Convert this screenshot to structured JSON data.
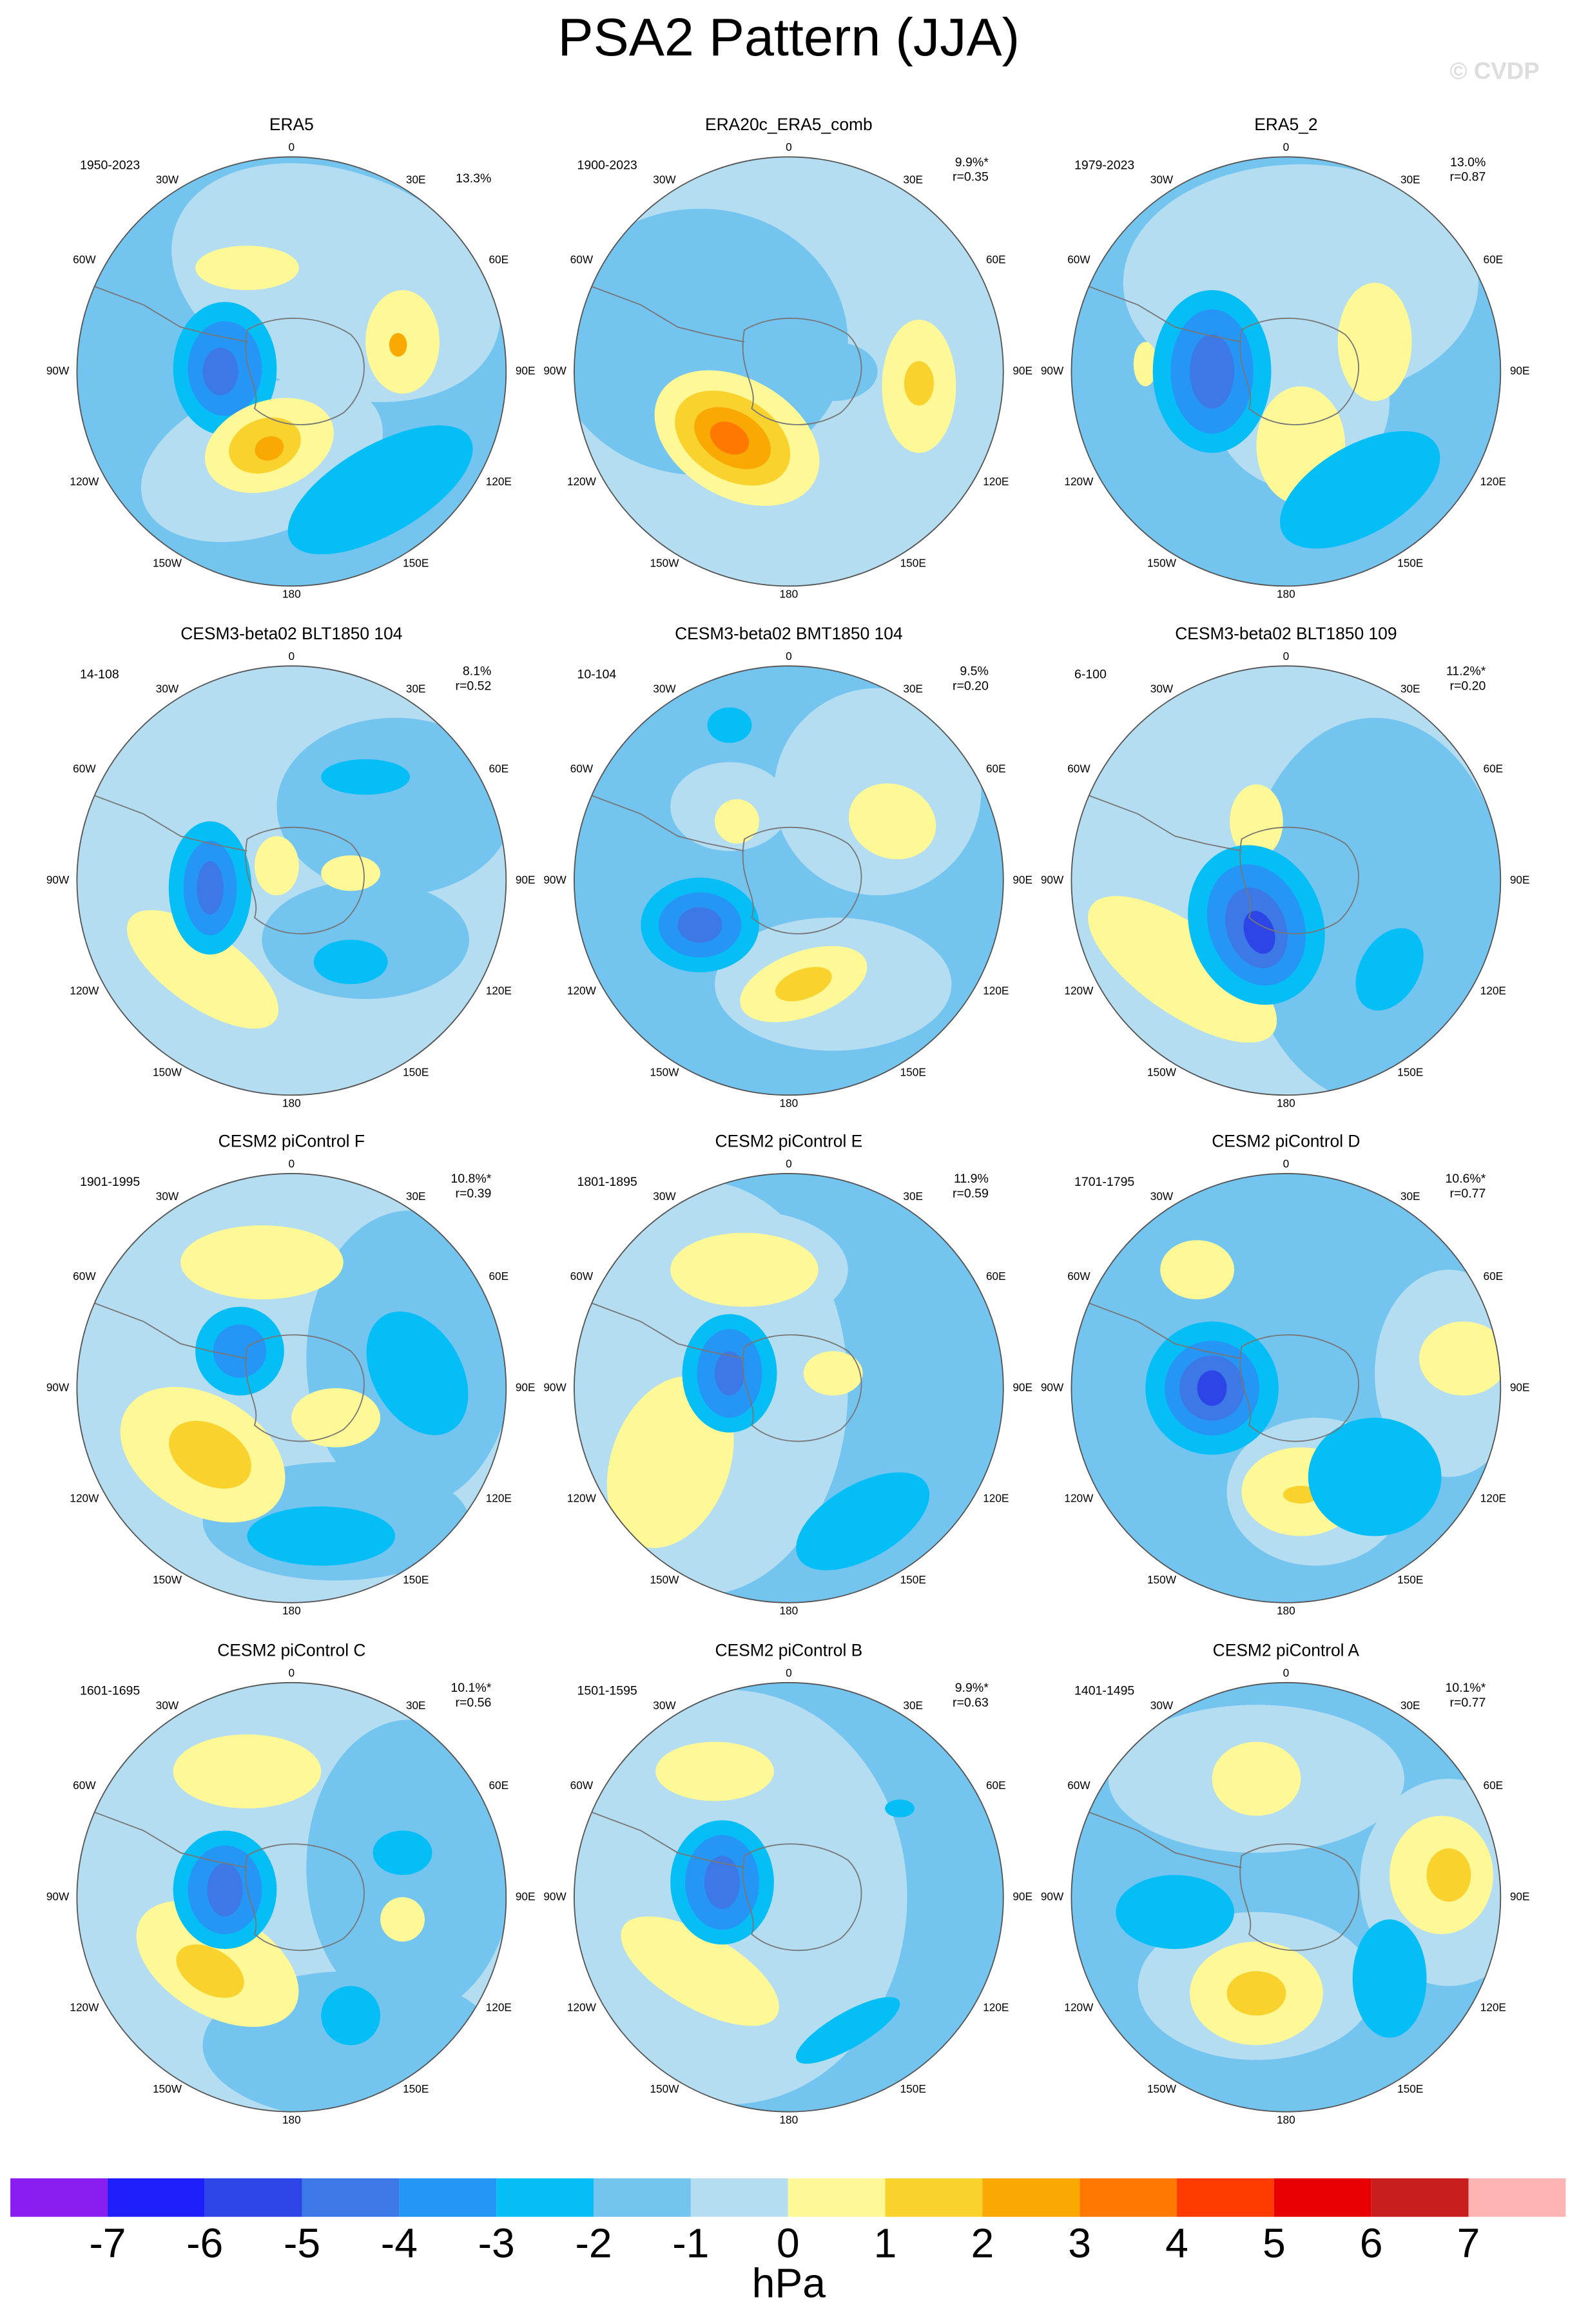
{
  "title": "PSA2 Pattern (JJA)",
  "copyright": "© CVDP",
  "longitude_labels": [
    "0",
    "30E",
    "60E",
    "90E",
    "120E",
    "150E",
    "180",
    "150W",
    "120W",
    "90W",
    "60W",
    "30W"
  ],
  "panels": [
    {
      "title": "ERA5",
      "period": "1950-2023",
      "percent": "13.3%"
    },
    {
      "title": "ERA20c_ERA5_comb",
      "period": "1900-2023",
      "percent": "9.9%*",
      "r": "r=0.35"
    },
    {
      "title": "ERA5_2",
      "period": "1979-2023",
      "percent": "13.0%",
      "r": "r=0.87"
    },
    {
      "title": "CESM3-beta02 BLT1850 104",
      "period": "14-108",
      "percent": "8.1%",
      "r": "r=0.52"
    },
    {
      "title": "CESM3-beta02 BMT1850 104",
      "period": "10-104",
      "percent": "9.5%",
      "r": "r=0.20"
    },
    {
      "title": "CESM3-beta02 BLT1850 109",
      "period": "6-100",
      "percent": "11.2%*",
      "r": "r=0.20"
    },
    {
      "title": "CESM2 piControl F",
      "period": "1901-1995",
      "percent": "10.8%*",
      "r": "r=0.39"
    },
    {
      "title": "CESM2 piControl E",
      "period": "1801-1895",
      "percent": "11.9%",
      "r": "r=0.59"
    },
    {
      "title": "CESM2 piControl D",
      "period": "1701-1795",
      "percent": "10.6%*",
      "r": "r=0.77"
    },
    {
      "title": "CESM2 piControl C",
      "period": "1601-1695",
      "percent": "10.1%*",
      "r": "r=0.56"
    },
    {
      "title": "CESM2 piControl B",
      "period": "1501-1595",
      "percent": "9.9%*",
      "r": "r=0.63"
    },
    {
      "title": "CESM2 piControl A",
      "period": "1401-1495",
      "percent": "10.1%*",
      "r": "r=0.77"
    }
  ],
  "colorbar": {
    "colors": [
      "#8a1ef0",
      "#1e1efa",
      "#2d45e6",
      "#3c78e6",
      "#2596f5",
      "#06bef6",
      "#73c4ef",
      "#b4ddf2",
      "#fff896",
      "#fad22d",
      "#f9a902",
      "#ff7800",
      "#ff3c00",
      "#e80000",
      "#c81e1e",
      "#ffb4b4"
    ],
    "ticks": [
      -7,
      -6,
      -5,
      -4,
      -3,
      -2,
      -1,
      0,
      1,
      2,
      3,
      4,
      5,
      6,
      7
    ],
    "unit": "hPa"
  }
}
